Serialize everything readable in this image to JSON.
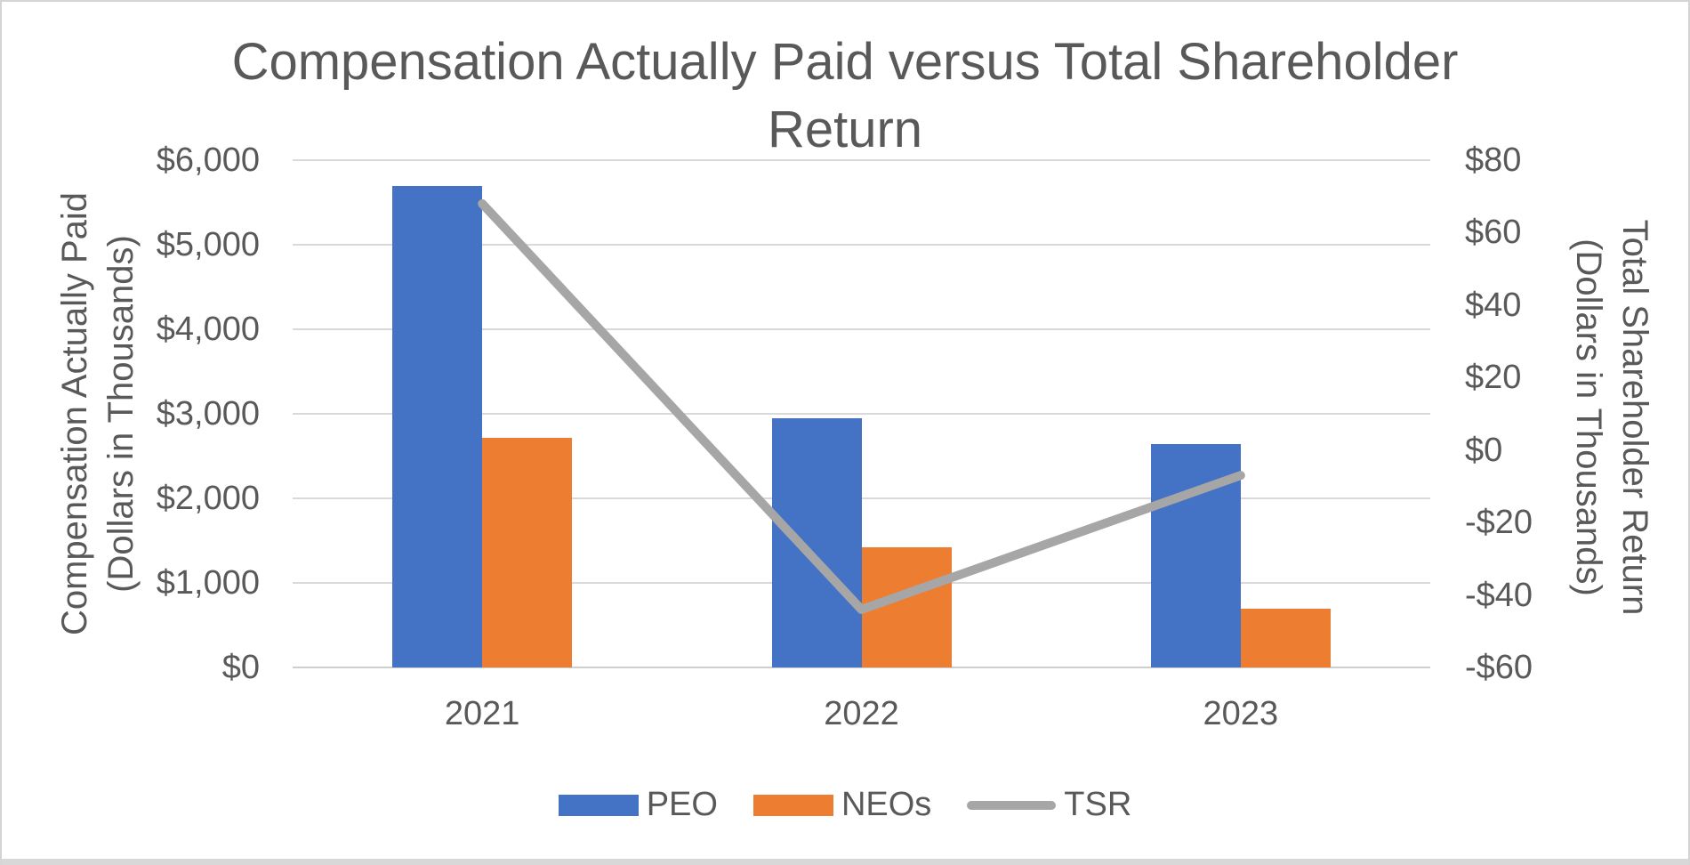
{
  "chart_data": {
    "type": "combo-bar-line",
    "title": "Compensation Actually Paid versus Total Shareholder Return",
    "title_lines": [
      "Compensation Actually Paid versus Total Shareholder",
      "Return"
    ],
    "categories": [
      "2021",
      "2022",
      "2023"
    ],
    "series": [
      {
        "name": "PEO",
        "chart": "bar",
        "axis": "left",
        "color": "#4472C4",
        "values": [
          5700,
          2950,
          2640
        ]
      },
      {
        "name": "NEOs",
        "chart": "bar",
        "axis": "left",
        "color": "#ED7D31",
        "values": [
          2720,
          1420,
          700
        ]
      },
      {
        "name": "TSR",
        "chart": "line",
        "axis": "right",
        "color": "#A6A6A6",
        "values": [
          68,
          -44,
          -7
        ]
      }
    ],
    "left_axis": {
      "title": "Compensation Actually Paid (Dollars in Thousands)",
      "title_lines": [
        "Compensation Actually Paid",
        "(Dollars in Thousands)"
      ],
      "min": 0,
      "max": 6000,
      "tick_step": 1000,
      "tick_labels": [
        "$0",
        "$1,000",
        "$2,000",
        "$3,000",
        "$4,000",
        "$5,000",
        "$6,000"
      ]
    },
    "right_axis": {
      "title": "Total Shareholder Return (Dollars in Thousands)",
      "title_lines": [
        "Total Shareholder Return",
        "(Dollars in Thousands)"
      ],
      "min": -60,
      "max": 80,
      "tick_step": 20,
      "tick_labels": [
        "-$60",
        "-$40",
        "-$20",
        "$0",
        "$20",
        "$40",
        "$60",
        "$80"
      ]
    },
    "legend": {
      "position": "bottom",
      "entries": [
        "PEO",
        "NEOs",
        "TSR"
      ]
    },
    "gridlines": "horizontal",
    "colors": {
      "text": "#595959",
      "gridline": "#D9D9D9",
      "background": "#FFFFFF"
    }
  }
}
